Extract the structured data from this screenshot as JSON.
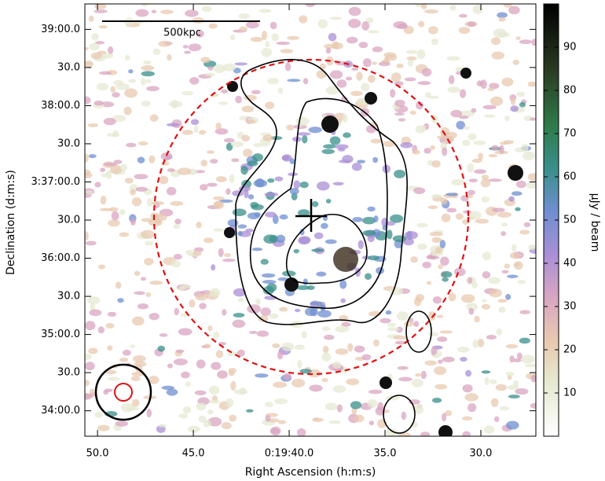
{
  "chart_data": {
    "type": "image",
    "xlabel": "Right Ascension (h:m:s)",
    "ylabel": "Declination (d:m:s)",
    "xlim": [
      50.66,
      27.13
    ],
    "xticks": [
      {
        "value": 50,
        "label": "50.0"
      },
      {
        "value": 45,
        "label": "45.0"
      },
      {
        "value": 40,
        "label": "0:19:40.0"
      },
      {
        "value": 35,
        "label": "35.0"
      },
      {
        "value": 30,
        "label": "30.0"
      }
    ],
    "ylim": [
      -20,
      320
    ],
    "yticks": [
      {
        "value": 300,
        "label": "39:00.0"
      },
      {
        "value": 270,
        "label": "30.0"
      },
      {
        "value": 240,
        "label": "38:00.0"
      },
      {
        "value": 210,
        "label": "30.0"
      },
      {
        "value": 180,
        "label": "3:37:00.0"
      },
      {
        "value": 150,
        "label": "30.0"
      },
      {
        "value": 120,
        "label": "36:00.0"
      },
      {
        "value": 90,
        "label": "30.0"
      },
      {
        "value": 60,
        "label": "35:00.0"
      },
      {
        "value": 30,
        "label": "30.0"
      },
      {
        "value": 0,
        "label": "34:00.0"
      }
    ],
    "colorbar_label": "μJy / beam",
    "clim": [
      0,
      100
    ],
    "cticks": [
      10,
      20,
      30,
      40,
      50,
      60,
      70,
      80,
      90
    ],
    "scalebar_label": "500kpc"
  }
}
